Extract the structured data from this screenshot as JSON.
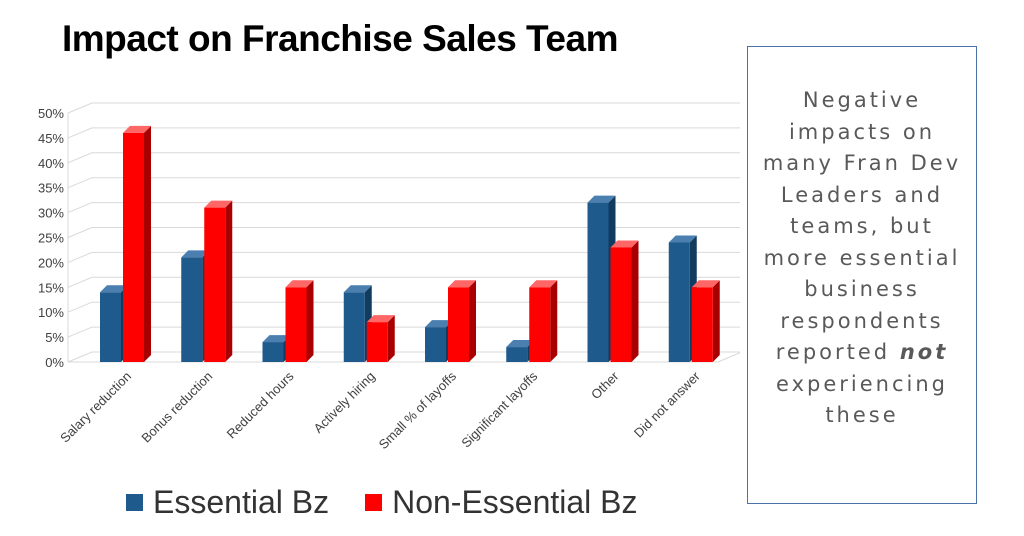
{
  "colors": {
    "essential": "#1f5a8c",
    "essential_dark": "#113b5f",
    "essential_top": "#4a7fb0",
    "non_essential": "#ff0000",
    "non_essential_dark": "#a80000",
    "non_essential_top": "#ff6666",
    "grid": "#d9d9d9",
    "note_border": "#4a72a8",
    "note_text": "#595959"
  },
  "chart_data": {
    "type": "bar",
    "title": "Impact on Franchise Sales Team",
    "categories": [
      "Salary reduction",
      "Bonus reduction",
      "Reduced hours",
      "Actively hiring",
      "Small % of layoffs",
      "Significant layoffs",
      "Other",
      "Did not answer"
    ],
    "series": [
      {
        "name": "Essential Bz",
        "values": [
          14,
          21,
          4,
          14,
          7,
          3,
          32,
          24
        ]
      },
      {
        "name": "Non-Essential Bz",
        "values": [
          46,
          31,
          15,
          8,
          15,
          15,
          23,
          15
        ]
      }
    ],
    "ylim": [
      0,
      50
    ],
    "yticks": [
      "0%",
      "5%",
      "10%",
      "15%",
      "20%",
      "25%",
      "30%",
      "35%",
      "40%",
      "45%",
      "50%"
    ],
    "unit": "%",
    "grid": true,
    "legend_position": "bottom"
  },
  "note": {
    "before": "Negative impacts on many Fran Dev Leaders and teams, but more essential business respondents reported ",
    "emphasis": "not",
    "after": " experiencing these"
  }
}
